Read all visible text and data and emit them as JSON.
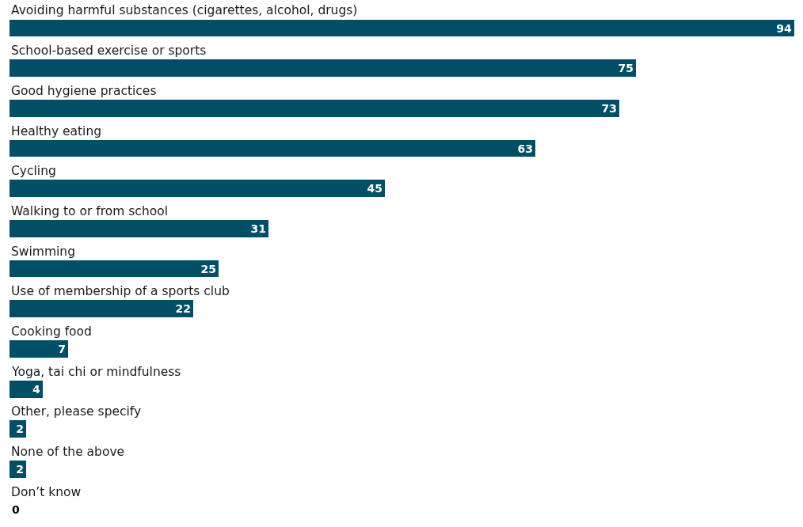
{
  "chart_data": {
    "type": "bar",
    "orientation": "horizontal",
    "categories": [
      "Avoiding harmful substances (cigarettes, alcohol, drugs)",
      "School-based exercise or sports",
      "Good hygiene practices",
      "Healthy eating",
      "Cycling",
      "Walking to or from school",
      "Swimming",
      "Use of membership of a sports club",
      "Cooking food",
      "Yoga, tai chi or mindfulness",
      "Other, please specify",
      "None of the above",
      "Don’t know"
    ],
    "values": [
      94,
      75,
      73,
      63,
      45,
      31,
      25,
      22,
      7,
      4,
      2,
      2,
      0
    ],
    "color": "#004f66",
    "xlim": [
      0,
      94
    ],
    "data_labels": true
  }
}
